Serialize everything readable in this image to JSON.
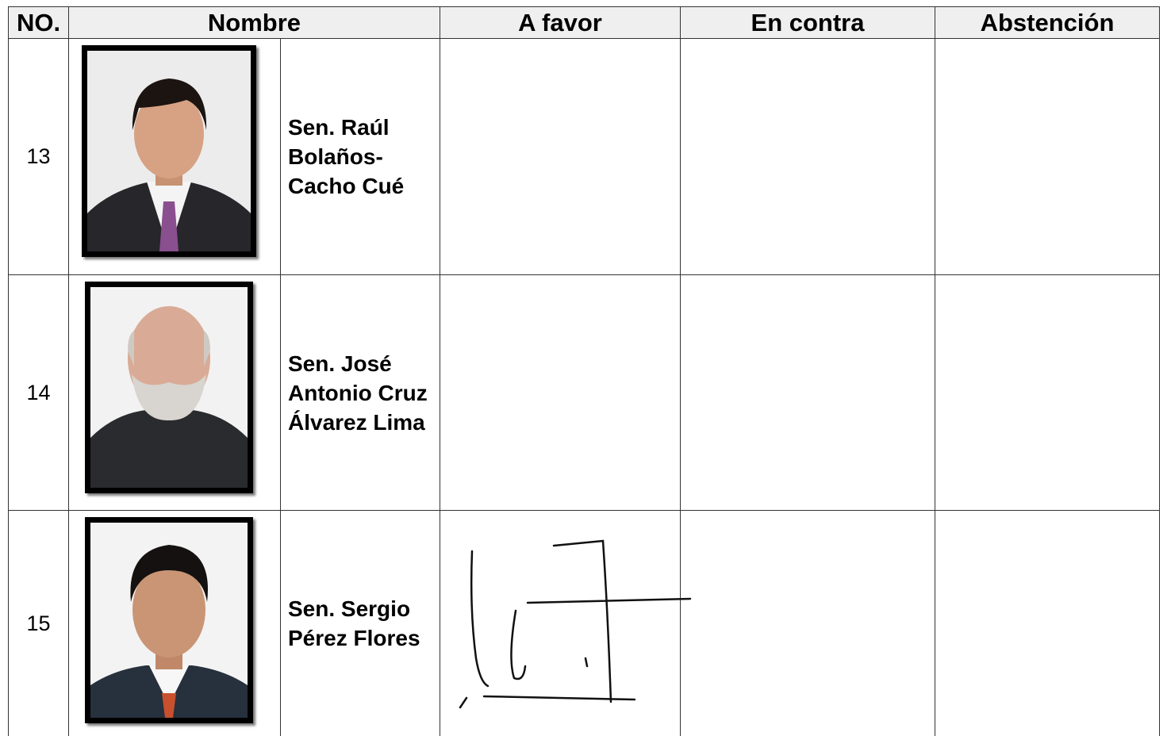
{
  "table": {
    "header": [
      "NO.",
      "Nombre",
      "A favor",
      "En contra",
      "Abstención"
    ],
    "rows": [
      {
        "number": 13,
        "name": "Sen. Raúl Bolaños-Cacho Cué"
      },
      {
        "number": 14,
        "name": "Sen. José Antonio Cruz Álvarez Lima"
      },
      {
        "number": 15,
        "name": "Sen. Sergio Pérez Flores"
      }
    ]
  }
}
